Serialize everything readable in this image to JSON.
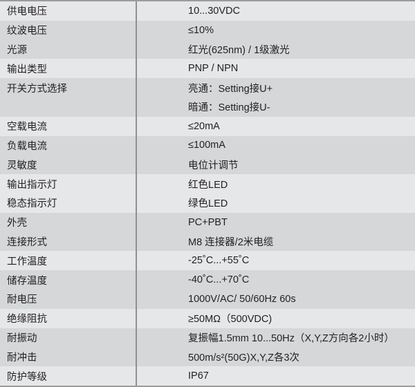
{
  "bands": [
    {
      "rows": [
        {
          "label": "供电电压",
          "value": "10...30VDC"
        }
      ]
    },
    {
      "rows": [
        {
          "label": "纹波电压",
          "value": "≤10%"
        },
        {
          "label": "光源",
          "value": "红光(625nm) / 1级激光"
        }
      ]
    },
    {
      "rows": [
        {
          "label": "输出类型",
          "value": "PNP / NPN"
        }
      ]
    },
    {
      "rows": [
        {
          "label": "开关方式选择",
          "value": "亮通：Setting接U+"
        },
        {
          "label": "",
          "value": "暗通：Setting接U-"
        }
      ]
    },
    {
      "rows": [
        {
          "label": "空载电流",
          "value": "≤20mA"
        }
      ]
    },
    {
      "rows": [
        {
          "label": "负载电流",
          "value": "≤100mA"
        },
        {
          "label": "灵敏度",
          "value": "电位计调节"
        }
      ]
    },
    {
      "rows": [
        {
          "label": "输出指示灯",
          "value": "红色LED"
        },
        {
          "label": "稳态指示灯",
          "value": "绿色LED"
        }
      ]
    },
    {
      "rows": [
        {
          "label": "外壳",
          "value": "PC+PBT"
        },
        {
          "label": "连接形式",
          "value": "M8 连接器/2米电缆"
        }
      ]
    },
    {
      "rows": [
        {
          "label": "工作温度",
          "value": "-25˚C...+55˚C"
        }
      ]
    },
    {
      "rows": [
        {
          "label": "储存温度",
          "value": "-40˚C...+70˚C"
        },
        {
          "label": "耐电压",
          "value": "1000V/AC/ 50/60Hz 60s"
        }
      ]
    },
    {
      "rows": [
        {
          "label": "绝缘阻抗",
          "value": "≥50MΩ（500VDC)"
        }
      ]
    },
    {
      "rows": [
        {
          "label": "耐振动",
          "value": "复振幅1.5mm 10...50Hz（X,Y,Z方向各2小时）"
        },
        {
          "label": "耐冲击",
          "value": "500m/s²(50G)X,Y,Z各3次"
        }
      ]
    },
    {
      "rows": [
        {
          "label": "防护等级",
          "value": "IP67"
        }
      ]
    }
  ],
  "colors": {
    "band_light": "#e6e7e8",
    "band_dark": "#d5d7d9",
    "text": "#231f20"
  }
}
